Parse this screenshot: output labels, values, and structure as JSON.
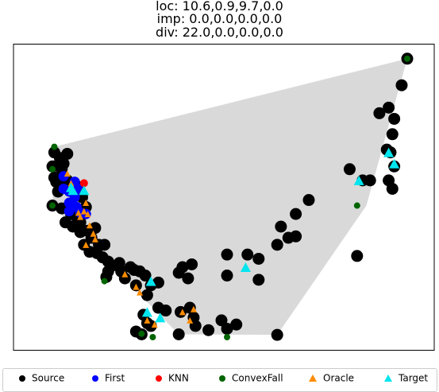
{
  "chart_data": {
    "type": "scatter",
    "title_lines": [
      "loc: 10.6,0.9,9.7,0.0",
      "imp: 0.0,0.0,0.0,0.0",
      "div: 22.0,0.0,0.0,0.0"
    ],
    "xlim": [
      0,
      100
    ],
    "ylim": [
      0,
      100
    ],
    "axes_visible": false,
    "grid": false,
    "legend_position": "bottom",
    "hull": [
      [
        38.5,
        1
      ],
      [
        65,
        0.8
      ],
      [
        89,
        47
      ],
      [
        100,
        99.5
      ],
      [
        5,
        68
      ],
      [
        4.5,
        47
      ]
    ],
    "series": [
      {
        "name": "Source",
        "marker": "circle",
        "color": "#000000",
        "points": [
          [
            100,
            99.5
          ],
          [
            98.5,
            90
          ],
          [
            95,
            82
          ],
          [
            96.5,
            78
          ],
          [
            92.5,
            80
          ],
          [
            96,
            72.5
          ],
          [
            94.5,
            67
          ],
          [
            95.5,
            66
          ],
          [
            96.5,
            61
          ],
          [
            95,
            56
          ],
          [
            96,
            53
          ],
          [
            84.5,
            60
          ],
          [
            90,
            56
          ],
          [
            88,
            56
          ],
          [
            73.5,
            49
          ],
          [
            86.5,
            29
          ],
          [
            5,
            66
          ],
          [
            6.5,
            64
          ],
          [
            8.5,
            65.5
          ],
          [
            7.5,
            62
          ],
          [
            4.5,
            61
          ],
          [
            7,
            60
          ],
          [
            5,
            57
          ],
          [
            8.5,
            56
          ],
          [
            5.5,
            55.5
          ],
          [
            8,
            53.5
          ],
          [
            6,
            52
          ],
          [
            11,
            54
          ],
          [
            12.5,
            50
          ],
          [
            13.5,
            46.5
          ],
          [
            7,
            46
          ],
          [
            9.5,
            44
          ],
          [
            11,
            43
          ],
          [
            12,
            41
          ],
          [
            8,
            41
          ],
          [
            10,
            39.5
          ],
          [
            14,
            38
          ],
          [
            16,
            39
          ],
          [
            12,
            37.5
          ],
          [
            15,
            35.5
          ],
          [
            17,
            33
          ],
          [
            13,
            33
          ],
          [
            14.5,
            30.5
          ],
          [
            16.5,
            30
          ],
          [
            18.5,
            33
          ],
          [
            18,
            28.5
          ],
          [
            19.5,
            27
          ],
          [
            20.5,
            25.5
          ],
          [
            19.5,
            23.5
          ],
          [
            22.5,
            26.5
          ],
          [
            23,
            23.5
          ],
          [
            24,
            21
          ],
          [
            25.5,
            25
          ],
          [
            26.5,
            24
          ],
          [
            28,
            23.5
          ],
          [
            27,
            18.5
          ],
          [
            29.5,
            22
          ],
          [
            31,
            18.5
          ],
          [
            33,
            19.5
          ],
          [
            30,
            15
          ],
          [
            33,
            10.5
          ],
          [
            35,
            9.5
          ],
          [
            29,
            8
          ],
          [
            31,
            4
          ],
          [
            27,
            2
          ],
          [
            28.5,
            1
          ],
          [
            30,
            5
          ],
          [
            39,
            9
          ],
          [
            41.5,
            10.5
          ],
          [
            42.5,
            7
          ],
          [
            43,
            4
          ],
          [
            46.5,
            2.5
          ],
          [
            50,
            6
          ],
          [
            51.5,
            3
          ],
          [
            54,
            4.5
          ],
          [
            38.5,
            23
          ],
          [
            39.5,
            25
          ],
          [
            42,
            26
          ],
          [
            41,
            21
          ],
          [
            51.5,
            22
          ],
          [
            51.5,
            29.5
          ],
          [
            57,
            29.5
          ],
          [
            60,
            28
          ],
          [
            65,
            33
          ],
          [
            68,
            35.5
          ],
          [
            70,
            36
          ],
          [
            66,
            39.5
          ],
          [
            70,
            44
          ],
          [
            60,
            20.5
          ],
          [
            4.5,
            47
          ],
          [
            19,
            21.5
          ],
          [
            38.5,
            1
          ],
          [
            65,
            0.8
          ]
        ]
      },
      {
        "name": "First",
        "marker": "circle",
        "color": "#0000ff",
        "points": [
          [
            7.5,
            57.5
          ],
          [
            10.5,
            55.5
          ],
          [
            7.5,
            53
          ],
          [
            9,
            52
          ],
          [
            10.5,
            50
          ],
          [
            11.5,
            53
          ],
          [
            9,
            48
          ],
          [
            12,
            44.5
          ],
          [
            13.5,
            44
          ],
          [
            11,
            46.5
          ],
          [
            9,
            45
          ]
        ]
      },
      {
        "name": "KNN",
        "marker": "circle",
        "color": "#ff0000",
        "points": [
          [
            13,
            55
          ]
        ]
      },
      {
        "name": "ConvexFall",
        "marker": "circle",
        "color": "#006400",
        "points": [
          [
            100,
            99.5
          ],
          [
            5,
            68
          ],
          [
            4.5,
            60
          ],
          [
            4.5,
            47
          ],
          [
            86.5,
            47
          ],
          [
            18.5,
            20
          ],
          [
            28.5,
            1.2
          ],
          [
            31.5,
            0
          ],
          [
            51.5,
            0
          ]
        ]
      },
      {
        "name": "Oracle",
        "marker": "triangle",
        "color": "#ff8c00",
        "points": [
          [
            8.5,
            58.5
          ],
          [
            9.5,
            55
          ],
          [
            12.5,
            52
          ],
          [
            13.5,
            48
          ],
          [
            13,
            45
          ],
          [
            11.5,
            44.5
          ],
          [
            14,
            44
          ],
          [
            12,
            43
          ],
          [
            14.5,
            40
          ],
          [
            13.5,
            33
          ],
          [
            15.5,
            37
          ],
          [
            16,
            35
          ],
          [
            24,
            22.5
          ],
          [
            27,
            18
          ],
          [
            28,
            16
          ],
          [
            39.5,
            9
          ],
          [
            42.5,
            10
          ],
          [
            41.5,
            6
          ],
          [
            32,
            4.5
          ],
          [
            30,
            6
          ]
        ]
      },
      {
        "name": "Target",
        "marker": "triangle",
        "color": "#00e5ee",
        "points": [
          [
            9.5,
            53.5
          ],
          [
            10,
            52.5
          ],
          [
            13,
            52.5
          ],
          [
            31,
            20
          ],
          [
            56.5,
            25
          ],
          [
            95,
            66
          ],
          [
            96.5,
            62
          ],
          [
            87,
            56
          ],
          [
            30,
            9
          ],
          [
            33.5,
            7
          ]
        ]
      }
    ]
  }
}
